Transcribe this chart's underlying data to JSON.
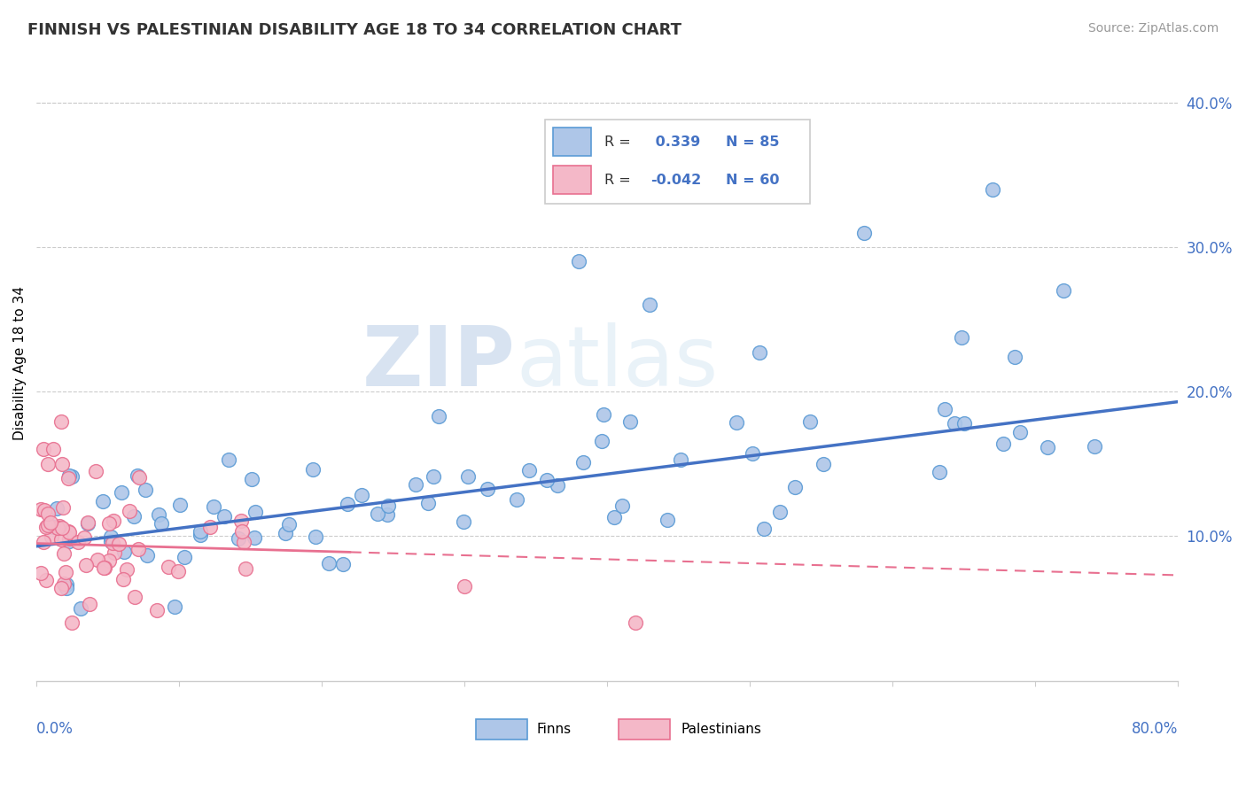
{
  "title": "FINNISH VS PALESTINIAN DISABILITY AGE 18 TO 34 CORRELATION CHART",
  "source_text": "Source: ZipAtlas.com",
  "ylabel": "Disability Age 18 to 34",
  "r1": 0.339,
  "n1": 85,
  "r2": -0.042,
  "n2": 60,
  "xlim": [
    0.0,
    0.8
  ],
  "ylim": [
    0.0,
    0.44
  ],
  "yticks": [
    0.1,
    0.2,
    0.3,
    0.4
  ],
  "ytick_labels": [
    "10.0%",
    "20.0%",
    "30.0%",
    "40.0%"
  ],
  "color_finn": "#aec6e8",
  "color_finn_edge": "#5b9bd5",
  "color_pales": "#f4b8c8",
  "color_pales_edge": "#e87090",
  "color_finn_line": "#4472c4",
  "color_pales_line": "#e87090",
  "watermark_zip": "#c5d8ee",
  "watermark_atlas": "#d8e8f4",
  "grid_color": "#cccccc",
  "legend_label1": "Finns",
  "legend_label2": "Palestinians"
}
